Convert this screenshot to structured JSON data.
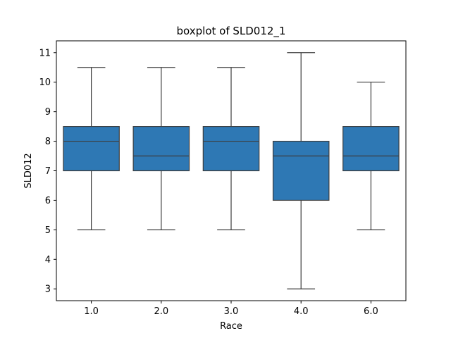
{
  "chart_data": {
    "type": "boxplot",
    "title": "boxplot of SLD012_1",
    "xlabel": "Race",
    "ylabel": "SLD012",
    "categories": [
      "1.0",
      "2.0",
      "3.0",
      "4.0",
      "6.0"
    ],
    "boxes": [
      {
        "category": "1.0",
        "whisker_low": 5,
        "q1": 7,
        "median": 8,
        "q3": 8.5,
        "whisker_high": 10.5
      },
      {
        "category": "2.0",
        "whisker_low": 5,
        "q1": 7,
        "median": 7.5,
        "q3": 8.5,
        "whisker_high": 10.5
      },
      {
        "category": "3.0",
        "whisker_low": 5,
        "q1": 7,
        "median": 8,
        "q3": 8.5,
        "whisker_high": 10.5
      },
      {
        "category": "4.0",
        "whisker_low": 3,
        "q1": 6,
        "median": 7.5,
        "q3": 8,
        "whisker_high": 11
      },
      {
        "category": "6.0",
        "whisker_low": 5,
        "q1": 7,
        "median": 7.5,
        "q3": 8.5,
        "whisker_high": 10
      }
    ],
    "yticks": [
      3,
      4,
      5,
      6,
      7,
      8,
      9,
      10,
      11
    ],
    "ylim": [
      2.6,
      11.4
    ],
    "grid": false,
    "box_color": "#2e78b4",
    "line_color": "#3d3d3d"
  }
}
